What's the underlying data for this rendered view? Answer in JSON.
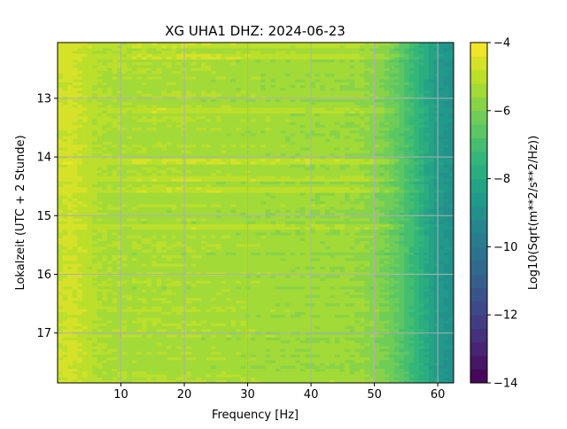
{
  "chart_data": {
    "type": "heatmap",
    "title": "XG UHA1  DHZ: 2024-06-23",
    "xlabel": "Frequency [Hz]",
    "ylabel": "Lokalzeit (UTC + 2 Stunde)",
    "xlim": [
      0,
      62.5
    ],
    "ylim": [
      17.85,
      12.05
    ],
    "y_inverted": true,
    "x_ticks": [
      10,
      20,
      30,
      40,
      50,
      60
    ],
    "x_tick_labels": [
      "10",
      "20",
      "30",
      "40",
      "50",
      "60"
    ],
    "y_ticks": [
      13,
      14,
      15,
      16,
      17
    ],
    "y_tick_labels": [
      "13",
      "14",
      "15",
      "16",
      "17"
    ],
    "grid": true,
    "colormap": "viridis",
    "colorbar": {
      "label": "Log10(Sqrt(m**2/s**2/Hz))",
      "vmin": -14,
      "vmax": -4,
      "levels": 25,
      "ticks": [
        -14,
        -12,
        -10,
        -8,
        -6,
        -4
      ],
      "tick_labels": [
        "−14",
        "−12",
        "−10",
        "−8",
        "−6",
        "−4"
      ]
    },
    "frequency_profile": {
      "frequency_hz": [
        0,
        2,
        4,
        6,
        10,
        20,
        30,
        40,
        45,
        48,
        50,
        52,
        54,
        56,
        58,
        60,
        62.5
      ],
      "log_amplitude": [
        -4.8,
        -4.7,
        -4.9,
        -5.2,
        -5.3,
        -5.3,
        -5.4,
        -5.5,
        -5.5,
        -5.6,
        -5.8,
        -6.1,
        -6.6,
        -7.2,
        -7.9,
        -8.6,
        -9.0
      ]
    },
    "high_energy_bands_hours": [
      12.1,
      12.3,
      13.2,
      14.1,
      14.35,
      14.55,
      15.2
    ]
  }
}
